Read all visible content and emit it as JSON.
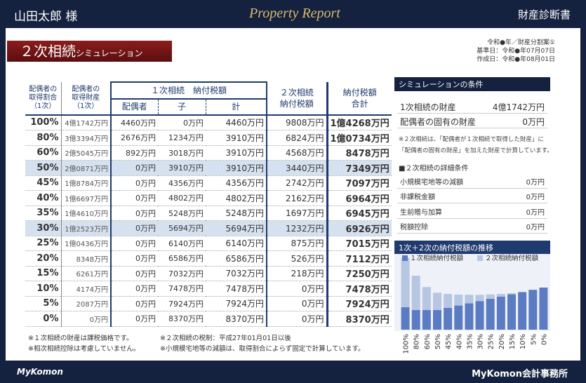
{
  "header": {
    "client": "山田太郎 様",
    "logo_text": "Property Report",
    "document": "財産診断書"
  },
  "title": {
    "main": "２次相続",
    "sub": "シミュレーション"
  },
  "meta": [
    "令和●年／財産分割案①",
    "基準日：令和●年07月07日",
    "作成日：令和●年08月01日"
  ],
  "table": {
    "headers": {
      "ratio": [
        "配偶者の",
        "取得割合",
        "（1次）"
      ],
      "assets": [
        "配偶者の",
        "取得財産",
        "（1次）"
      ],
      "first_group": "１次相続　納付税額",
      "spouse": "配偶者",
      "child": "子",
      "total": "計",
      "second": [
        "２次相続",
        "納付税額"
      ],
      "sum": [
        "納付税額",
        "合計"
      ]
    },
    "rows": [
      {
        "cells": [
          "100%",
          "4億1742万円",
          "4460万円",
          "0万円",
          "4460万円",
          "9808万円",
          "1億4268万円"
        ]
      },
      {
        "cells": [
          "80%",
          "3億3394万円",
          "2676万円",
          "1234万円",
          "3910万円",
          "6824万円",
          "1億0734万円"
        ]
      },
      {
        "cells": [
          "60%",
          "2億5045万円",
          "892万円",
          "3018万円",
          "3910万円",
          "4568万円",
          "8478万円"
        ]
      },
      {
        "cells": [
          "50%",
          "2億0871万円",
          "0万円",
          "3910万円",
          "3910万円",
          "3440万円",
          "7349万円"
        ],
        "highlighted": true
      },
      {
        "cells": [
          "45%",
          "1億8784万円",
          "0万円",
          "4356万円",
          "4356万円",
          "2742万円",
          "7097万円"
        ]
      },
      {
        "cells": [
          "40%",
          "1億6697万円",
          "0万円",
          "4802万円",
          "4802万円",
          "2162万円",
          "6964万円"
        ]
      },
      {
        "cells": [
          "35%",
          "1億4610万円",
          "0万円",
          "5248万円",
          "5248万円",
          "1697万円",
          "6945万円"
        ]
      },
      {
        "cells": [
          "30%",
          "1億2523万円",
          "0万円",
          "5694万円",
          "5694万円",
          "1232万円",
          "6926万円"
        ],
        "highlighted": true
      },
      {
        "cells": [
          "25%",
          "1億0436万円",
          "0万円",
          "6140万円",
          "6140万円",
          "875万円",
          "7015万円"
        ]
      },
      {
        "cells": [
          "20%",
          "8348万円",
          "0万円",
          "6586万円",
          "6586万円",
          "526万円",
          "7112万円"
        ]
      },
      {
        "cells": [
          "15%",
          "6261万円",
          "0万円",
          "7032万円",
          "7032万円",
          "218万円",
          "7250万円"
        ]
      },
      {
        "cells": [
          "10%",
          "4174万円",
          "0万円",
          "7478万円",
          "7478万円",
          "0万円",
          "7478万円"
        ]
      },
      {
        "cells": [
          "5%",
          "2087万円",
          "0万円",
          "7924万円",
          "7924万円",
          "0万円",
          "7924万円"
        ]
      },
      {
        "cells": [
          "0%",
          "0万円",
          "0万円",
          "8370万円",
          "8370万円",
          "0万円",
          "8370万円"
        ]
      }
    ]
  },
  "conditions": {
    "title": "シミュレーションの条件",
    "items": [
      [
        "1次相続の財産",
        "4億1742万円"
      ],
      [
        "配偶者の固有の財産",
        "0万円"
      ]
    ],
    "note": [
      "※２次相続は、「配偶者が１次相続で取得した財産」に",
      "「配偶者の固有の財産」を加えた財産で計算しています。"
    ],
    "detail_title": "■２次相続の詳細条件",
    "details": [
      [
        "小規模宅地等の減額",
        "0万円"
      ],
      [
        "非課税金額",
        "0万円"
      ],
      [
        "生前贈与加算",
        "0万円"
      ],
      [
        "税額控除",
        "0万円"
      ]
    ]
  },
  "chart_data": {
    "type": "stacked_bar",
    "title": "1次＋2次の納付税額の推移",
    "categories": [
      "100%",
      "80%",
      "60%",
      "50%",
      "45%",
      "40%",
      "35%",
      "30%",
      "25%",
      "20%",
      "15%",
      "10%",
      "5%",
      "0%"
    ],
    "series": [
      {
        "name": "１次相続納付税額",
        "color": "#5b7cc2",
        "values": [
          4460,
          3910,
          3910,
          3910,
          4356,
          4802,
          5248,
          5694,
          6140,
          6586,
          7032,
          7478,
          7924,
          8370
        ]
      },
      {
        "name": "２次相続納付税額",
        "color": "#b6c6e3",
        "values": [
          9808,
          6824,
          4568,
          3440,
          2742,
          2162,
          1697,
          1232,
          875,
          526,
          218,
          0,
          0,
          0
        ]
      }
    ],
    "ylim": [
      0,
      14500
    ]
  },
  "footnotes": [
    "※１次相続の財産は課税価格です。",
    "※相次相続控除は考慮していません。",
    "※２次相続の税制：平成27年01月01日以後",
    "※小規模宅地等の減額は、取得割合によらず固定で計算しています。"
  ],
  "footer": {
    "logo": "MyKomon",
    "office": "MyKomon会計事務所"
  }
}
